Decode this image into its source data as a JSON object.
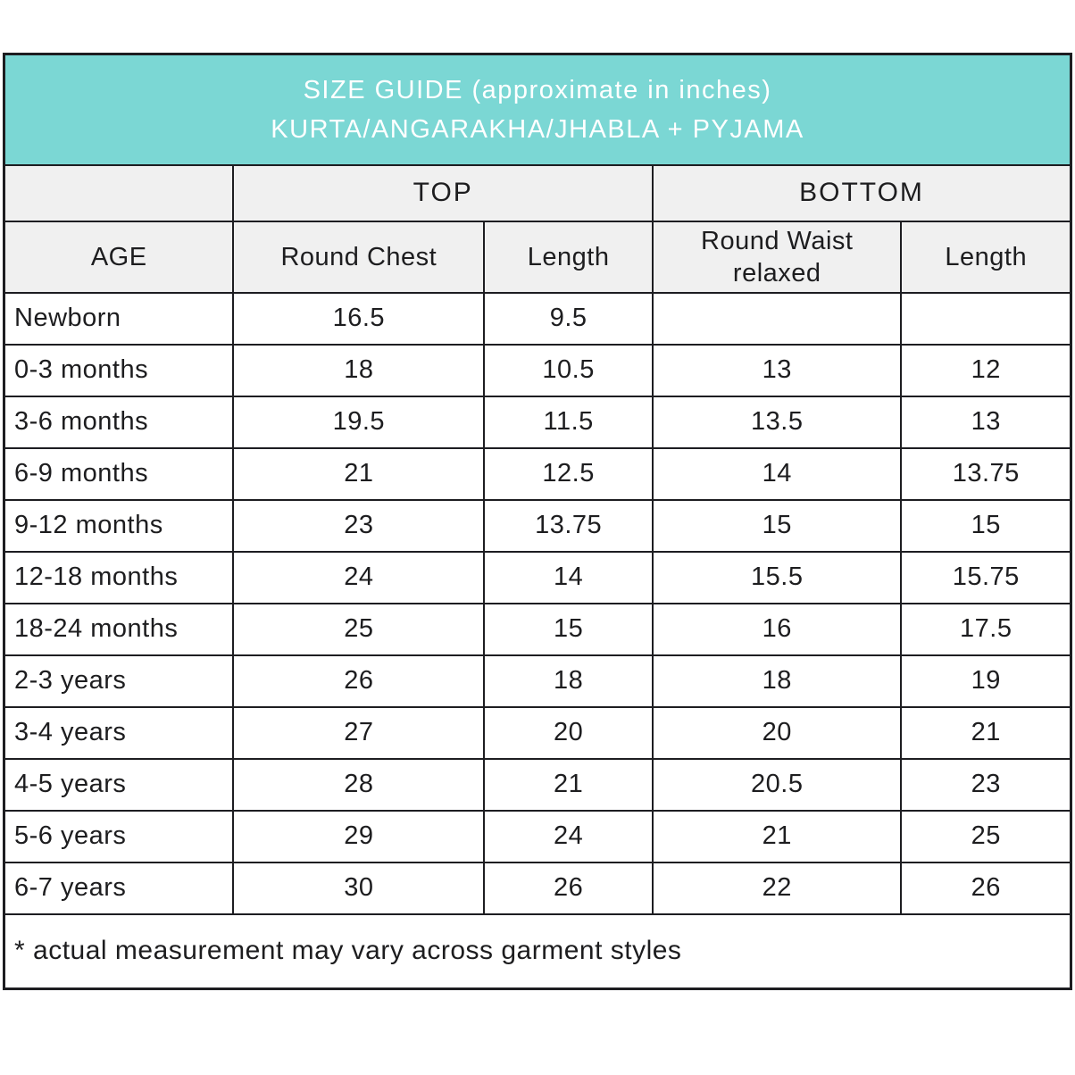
{
  "colors": {
    "banner_bg": "#7bd7d4",
    "banner_text": "#ffffff",
    "subheader_bg": "#f0f0f0",
    "border": "#1d1d21",
    "text": "#1d1d1f"
  },
  "chart_data": {
    "type": "table",
    "title": "SIZE GUIDE (approximate in inches)",
    "subtitle": "KURTA/ANGARAKHA/JHABLA + PYJAMA",
    "group_headers": {
      "top": "TOP",
      "bottom": "BOTTOM"
    },
    "columns": {
      "age": "AGE",
      "round_chest": "Round Chest",
      "top_length": "Length",
      "round_waist": "Round Waist relaxed",
      "bottom_length": "Length"
    },
    "rows": [
      {
        "age": "Newborn",
        "round_chest": "16.5",
        "top_length": "9.5",
        "round_waist": "",
        "bottom_length": ""
      },
      {
        "age": "0-3 months",
        "round_chest": "18",
        "top_length": "10.5",
        "round_waist": "13",
        "bottom_length": "12"
      },
      {
        "age": "3-6 months",
        "round_chest": "19.5",
        "top_length": "11.5",
        "round_waist": "13.5",
        "bottom_length": "13"
      },
      {
        "age": "6-9 months",
        "round_chest": "21",
        "top_length": "12.5",
        "round_waist": "14",
        "bottom_length": "13.75"
      },
      {
        "age": "9-12 months",
        "round_chest": "23",
        "top_length": "13.75",
        "round_waist": "15",
        "bottom_length": "15"
      },
      {
        "age": "12-18 months",
        "round_chest": "24",
        "top_length": "14",
        "round_waist": "15.5",
        "bottom_length": "15.75"
      },
      {
        "age": "18-24 months",
        "round_chest": "25",
        "top_length": "15",
        "round_waist": "16",
        "bottom_length": "17.5"
      },
      {
        "age": "2-3 years",
        "round_chest": "26",
        "top_length": "18",
        "round_waist": "18",
        "bottom_length": "19"
      },
      {
        "age": "3-4 years",
        "round_chest": "27",
        "top_length": "20",
        "round_waist": "20",
        "bottom_length": "21"
      },
      {
        "age": "4-5 years",
        "round_chest": "28",
        "top_length": "21",
        "round_waist": "20.5",
        "bottom_length": "23"
      },
      {
        "age": "5-6 years",
        "round_chest": "29",
        "top_length": "24",
        "round_waist": "21",
        "bottom_length": "25"
      },
      {
        "age": "6-7 years",
        "round_chest": "30",
        "top_length": "26",
        "round_waist": "22",
        "bottom_length": "26"
      }
    ],
    "footnote": "* actual measurement may vary across garment styles"
  }
}
